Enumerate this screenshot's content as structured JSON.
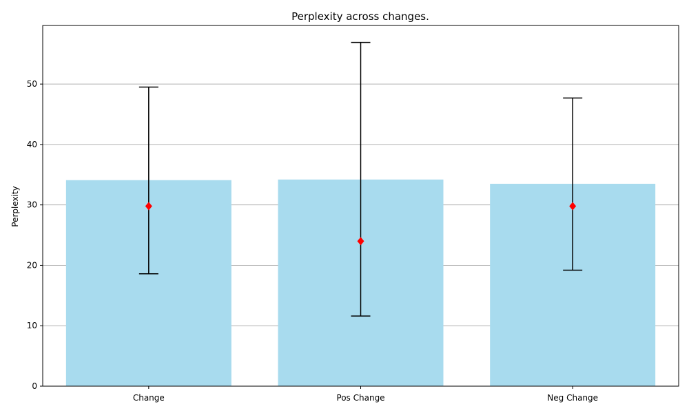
{
  "chart_data": {
    "type": "bar",
    "title": "Perplexity across changes.",
    "xlabel": "",
    "ylabel": "Perplexity",
    "categories": [
      "Change",
      "Pos Change",
      "Neg Change"
    ],
    "values": [
      34.1,
      34.2,
      33.5
    ],
    "error_low": [
      18.6,
      11.6,
      19.2
    ],
    "error_high": [
      49.5,
      56.9,
      47.7
    ],
    "markers": [
      29.8,
      24.0,
      29.8
    ],
    "ylim": [
      0,
      59.7
    ],
    "yticks": [
      0,
      10,
      20,
      30,
      40,
      50
    ],
    "grid": "horizontal",
    "colors": {
      "bar": "#a8dbee",
      "error": "#000000",
      "marker": "#ff0000",
      "grid": "#b0b0b0"
    }
  }
}
